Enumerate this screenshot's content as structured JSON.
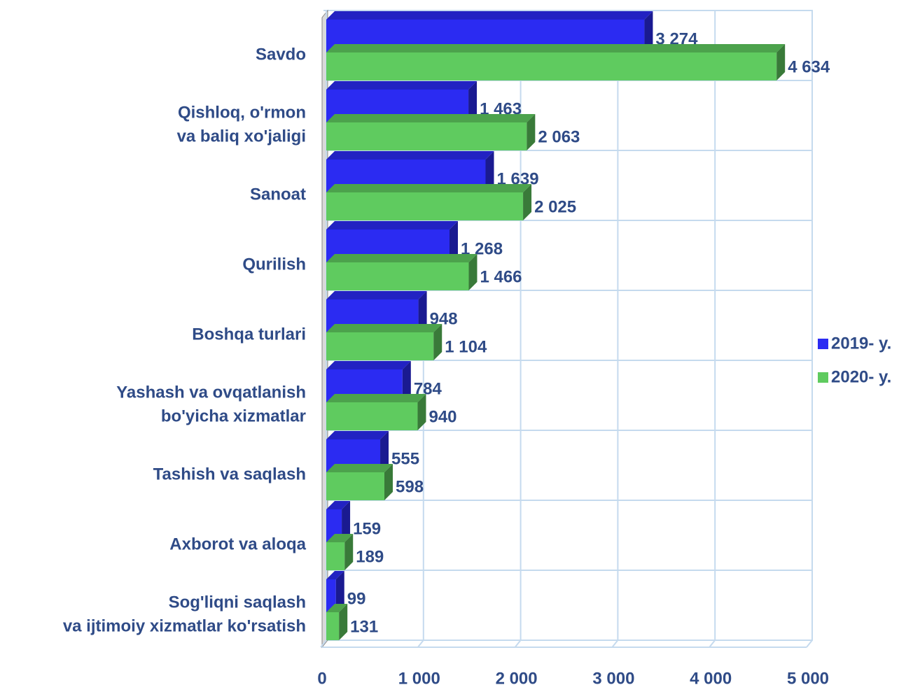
{
  "chart_data": {
    "type": "bar",
    "orientation": "horizontal",
    "categories": [
      "Savdo",
      [
        "Qishloq, o'rmon",
        "va baliq xo'jaligi"
      ],
      "Sanoat",
      "Qurilish",
      "Boshqa turlari",
      [
        "Yashash va ovqatlanish",
        "bo'yicha xizmatlar"
      ],
      "Tashish va saqlash",
      "Axborot va aloqa",
      [
        "Sog'liqni saqlash",
        "va ijtimoiy xizmatlar ko'rsatish"
      ]
    ],
    "series": [
      {
        "name": "2019- y.",
        "color": "#2b2bf2",
        "values": [
          3274,
          1463,
          1639,
          1268,
          948,
          784,
          555,
          159,
          99
        ],
        "value_labels": [
          "3 274",
          "1 463",
          "1 639",
          "1 268",
          "948",
          "784",
          "555",
          "159",
          "99"
        ]
      },
      {
        "name": "2020- y.",
        "color": "#5fcb5f",
        "values": [
          4634,
          2063,
          2025,
          1466,
          1104,
          940,
          598,
          189,
          131
        ],
        "value_labels": [
          "4 634",
          "2 063",
          "2 025",
          "1 466",
          "1 104",
          "940",
          "598",
          "189",
          "131"
        ]
      }
    ],
    "xlim": [
      0,
      5000
    ],
    "xticks": [
      0,
      {
        "value": 1000,
        "label": "1 000"
      },
      {
        "value": 2000,
        "label": "2 000"
      },
      {
        "value": 3000,
        "label": "3 000"
      },
      {
        "value": 4000,
        "label": "4 000"
      },
      {
        "value": 5000,
        "label": "5 000"
      }
    ],
    "grid": true,
    "legend": "right"
  }
}
